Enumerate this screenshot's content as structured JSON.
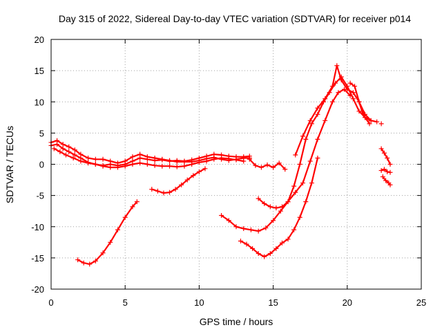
{
  "chart_data": {
    "type": "scatter",
    "title": "Day 315 of 2022, Sidereal Day-to-day VTEC variation (SDTVAR) for receiver p014",
    "xlabel": "GPS time / hours",
    "ylabel": "SDTVAR / TECUs",
    "xlim": [
      0,
      25
    ],
    "ylim": [
      -20,
      20
    ],
    "xticks": [
      0,
      5,
      10,
      15,
      20,
      25
    ],
    "yticks": [
      -20,
      -15,
      -10,
      -5,
      0,
      5,
      10,
      15,
      20
    ],
    "grid": true,
    "legend": "none",
    "marker": "+",
    "color": "#ff0000",
    "series": [
      {
        "name": "arc-main-a",
        "x": [
          0.0,
          0.4,
          0.8,
          1.2,
          1.6,
          2.0,
          2.5,
          3.0,
          3.5,
          4.0,
          4.5,
          5.0,
          5.5,
          6.0,
          6.5,
          7.0,
          7.5,
          8.0,
          8.5,
          9.0,
          9.5,
          10.0,
          10.5,
          11.0,
          11.5,
          12.0,
          12.5,
          13.0,
          13.4
        ],
        "y": [
          3.0,
          3.2,
          2.5,
          2.0,
          1.5,
          1.0,
          0.3,
          0.0,
          -0.2,
          0.0,
          -0.2,
          0.0,
          0.5,
          1.0,
          0.8,
          0.6,
          0.7,
          0.5,
          0.6,
          0.5,
          0.7,
          1.0,
          1.3,
          1.6,
          1.5,
          1.3,
          1.2,
          1.2,
          1.3
        ]
      },
      {
        "name": "arc-main-b",
        "x": [
          0.0,
          0.4,
          0.8,
          1.2,
          1.6,
          2.0,
          2.5,
          3.0,
          3.5,
          4.0,
          4.5,
          5.0,
          5.5,
          6.0,
          6.5,
          7.0,
          7.5,
          8.0,
          8.5,
          9.0,
          9.5,
          10.0,
          10.5,
          11.0,
          11.5,
          12.0,
          12.5,
          13.0,
          13.4
        ],
        "y": [
          3.5,
          3.8,
          3.2,
          2.8,
          2.3,
          1.6,
          1.0,
          0.8,
          0.8,
          0.5,
          0.2,
          0.5,
          1.2,
          1.6,
          1.2,
          1.0,
          0.8,
          0.6,
          0.4,
          0.4,
          0.4,
          0.6,
          0.9,
          1.1,
          0.8,
          0.6,
          0.8,
          1.0,
          1.0
        ]
      },
      {
        "name": "arc-main-c",
        "x": [
          0.2,
          0.6,
          1.0,
          1.5,
          2.0,
          2.5,
          3.0,
          3.5,
          4.0,
          4.5,
          5.0,
          5.5,
          6.0,
          6.5,
          7.0,
          7.5,
          8.0,
          8.5,
          9.0,
          9.5,
          10.0,
          10.5,
          11.0,
          11.5,
          12.0,
          12.5,
          13.0
        ],
        "y": [
          2.5,
          2.0,
          1.5,
          1.0,
          0.5,
          0.2,
          0.0,
          -0.3,
          -0.5,
          -0.5,
          -0.3,
          0.0,
          0.2,
          0.0,
          -0.2,
          -0.3,
          -0.3,
          -0.4,
          -0.3,
          0.0,
          0.3,
          0.5,
          0.8,
          1.0,
          0.9,
          0.7,
          0.5
        ]
      },
      {
        "name": "arc-dip",
        "x": [
          13.4,
          13.8,
          14.2,
          14.6,
          15.0,
          15.4,
          15.8
        ],
        "y": [
          0.8,
          -0.2,
          -0.5,
          -0.1,
          -0.5,
          0.2,
          -0.8
        ]
      },
      {
        "name": "arc-low-left",
        "x": [
          1.8,
          2.2,
          2.6,
          3.0,
          3.5,
          4.0,
          4.5,
          5.0,
          5.5,
          5.8
        ],
        "y": [
          -15.3,
          -15.8,
          -16.0,
          -15.5,
          -14.2,
          -12.5,
          -10.5,
          -8.5,
          -6.8,
          -6.0
        ]
      },
      {
        "name": "arc-mid-left",
        "x": [
          6.8,
          7.2,
          7.6,
          8.0,
          8.4,
          8.8,
          9.2,
          9.6,
          10.0,
          10.4
        ],
        "y": [
          -4.0,
          -4.3,
          -4.6,
          -4.5,
          -4.0,
          -3.3,
          -2.5,
          -1.8,
          -1.2,
          -0.7
        ]
      },
      {
        "name": "arc-mid-right-a",
        "x": [
          11.5,
          12.0,
          12.5,
          13.0,
          13.5,
          14.0,
          14.5,
          15.0,
          15.5,
          16.0,
          16.5,
          17.0,
          17.5,
          18.0,
          18.5,
          19.0,
          19.4,
          19.8,
          20.2
        ],
        "y": [
          -8.2,
          -9.0,
          -10.0,
          -10.3,
          -10.5,
          -10.7,
          -10.2,
          -9.0,
          -7.5,
          -6.0,
          -4.5,
          -3.0,
          0.5,
          4.0,
          7.0,
          10.0,
          11.5,
          12.0,
          11.0
        ]
      },
      {
        "name": "arc-mid-right-b",
        "x": [
          14.0,
          14.4,
          14.8,
          15.2,
          15.6,
          16.0,
          16.4,
          16.8,
          17.2,
          17.6,
          18.0,
          18.4,
          18.8,
          19.2,
          19.6,
          20.0,
          20.4,
          20.8,
          21.2,
          21.6,
          22.0
        ],
        "y": [
          -5.5,
          -6.3,
          -6.8,
          -7.0,
          -6.8,
          -6.0,
          -3.5,
          0.0,
          4.0,
          6.5,
          8.0,
          10.0,
          11.5,
          13.0,
          14.0,
          12.5,
          10.5,
          8.5,
          7.5,
          7.0,
          6.8
        ]
      },
      {
        "name": "arc-lower-right",
        "x": [
          12.8,
          13.2,
          13.6,
          14.0,
          14.4,
          14.8,
          15.2,
          15.6,
          16.0,
          16.4,
          16.8,
          17.2,
          17.6,
          18.0
        ],
        "y": [
          -12.3,
          -12.8,
          -13.5,
          -14.3,
          -14.8,
          -14.3,
          -13.5,
          -12.6,
          -12.0,
          -10.5,
          -8.5,
          -6.0,
          -3.0,
          1.0
        ]
      },
      {
        "name": "arc-peak",
        "x": [
          16.5,
          17.0,
          17.5,
          18.0,
          18.5,
          19.0,
          19.3,
          19.6,
          20.0,
          20.4,
          20.8,
          21.2,
          21.6
        ],
        "y": [
          1.5,
          4.5,
          7.0,
          9.0,
          10.5,
          12.5,
          15.8,
          13.5,
          12.0,
          11.5,
          10.0,
          8.0,
          7.0
        ]
      },
      {
        "name": "arc-spike",
        "x": [
          20.2,
          20.5,
          20.8,
          21.0,
          21.2,
          21.5
        ],
        "y": [
          13.0,
          12.5,
          10.0,
          8.5,
          7.5,
          6.5
        ]
      },
      {
        "name": "arc-late-a",
        "x": [
          22.3,
          22.5,
          22.7,
          22.9
        ],
        "y": [
          2.5,
          1.8,
          1.0,
          0.0
        ]
      },
      {
        "name": "arc-late-b",
        "x": [
          22.3,
          22.5,
          22.7,
          22.9
        ],
        "y": [
          -1.0,
          -0.8,
          -1.2,
          -1.3
        ]
      },
      {
        "name": "arc-late-c",
        "x": [
          22.4,
          22.6,
          22.8,
          22.9
        ],
        "y": [
          -2.0,
          -2.6,
          -3.0,
          -3.3
        ]
      }
    ],
    "points": [
      {
        "name": "isolated-point",
        "x": [
          22.3
        ],
        "y": [
          6.5
        ]
      }
    ]
  }
}
